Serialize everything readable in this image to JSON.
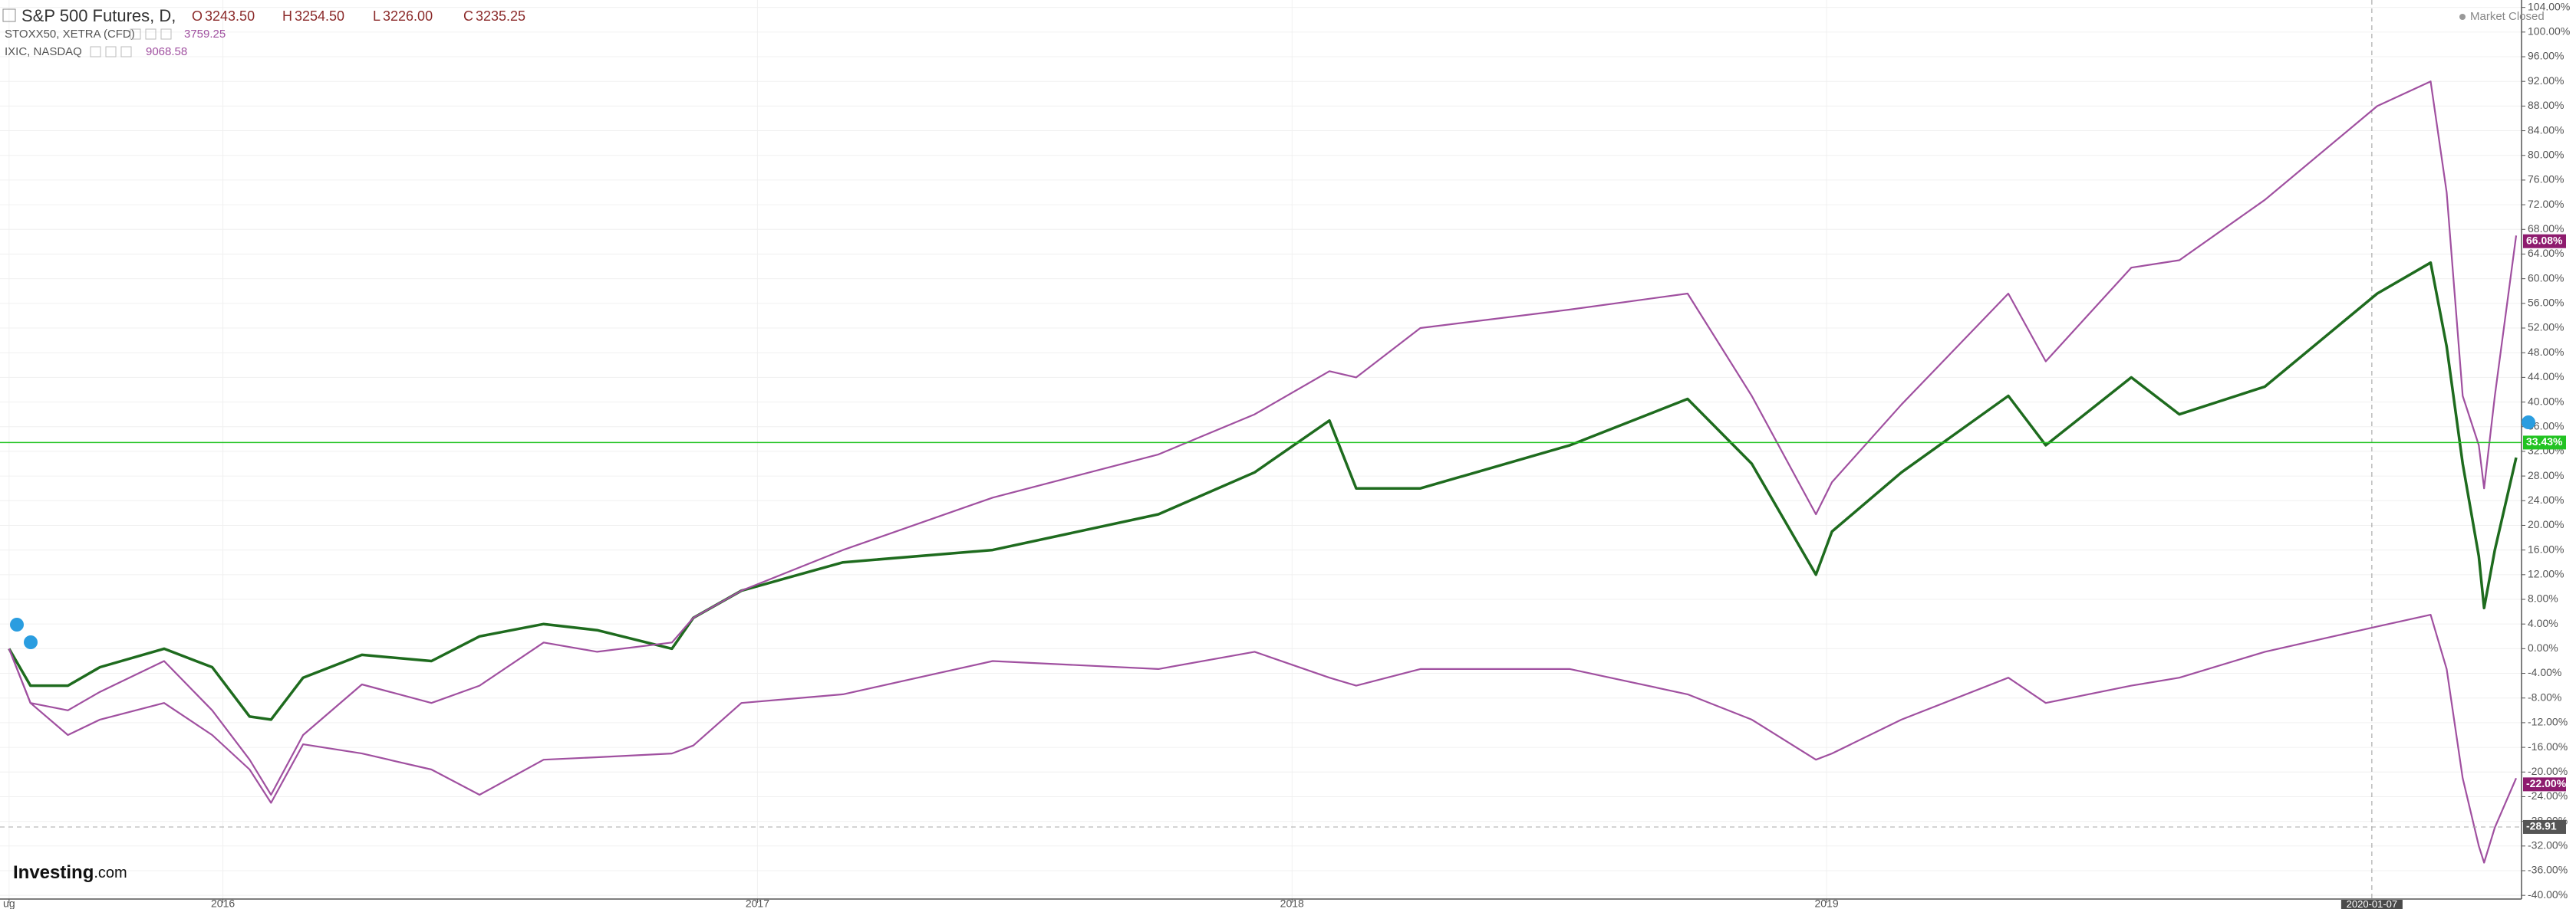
{
  "header": {
    "symbol": "S&P 500 Futures, D,",
    "ohlc": [
      {
        "label": "O",
        "value": "3243.50"
      },
      {
        "label": "H",
        "value": "3254.50"
      },
      {
        "label": "L",
        "value": "3226.00"
      },
      {
        "label": "C",
        "value": "3235.25"
      }
    ],
    "compare": [
      {
        "name": "STOXX50, XETRA (CFD)",
        "value": "3759.25"
      },
      {
        "name": "IXIC, NASDAQ",
        "value": "9068.58"
      }
    ],
    "status": "Market Closed",
    "logo": {
      "brand": "Investing",
      "suffix": ".com"
    }
  },
  "chart_data": {
    "type": "line",
    "x": [
      2015.6,
      2015.64,
      2015.71,
      2015.77,
      2015.89,
      2015.98,
      2016.05,
      2016.09,
      2016.15,
      2016.26,
      2016.39,
      2016.48,
      2016.6,
      2016.7,
      2016.84,
      2016.88,
      2016.97,
      2017.16,
      2017.44,
      2017.75,
      2017.93,
      2018.07,
      2018.12,
      2018.24,
      2018.52,
      2018.74,
      2018.86,
      2018.98,
      2019.01,
      2019.14,
      2019.34,
      2019.41,
      2019.57,
      2019.66,
      2019.82,
      2020.03,
      2020.13,
      2020.16,
      2020.19,
      2020.22,
      2020.23,
      2020.25,
      2020.29
    ],
    "series": [
      {
        "name": "S&P 500 Futures",
        "color": "#1e6b1e",
        "values": [
          0,
          -6,
          -6,
          -3,
          0,
          -3,
          -11,
          -11.5,
          -4.7,
          -1,
          -2,
          2,
          4,
          3,
          0,
          5,
          9.4,
          14,
          16,
          21.8,
          28.6,
          37,
          26,
          26,
          33,
          40.5,
          30,
          12,
          19,
          28.6,
          41,
          33,
          44,
          38,
          42.5,
          57.6,
          62.6,
          49,
          30,
          15,
          6.6,
          16,
          31
        ]
      },
      {
        "name": "IXIC",
        "color": "#a050a0",
        "values": [
          0,
          -8.8,
          -10,
          -7,
          -2,
          -10,
          -18,
          -23.7,
          -14,
          -5.8,
          -8.8,
          -6,
          1,
          -0.5,
          1,
          5,
          9.4,
          16,
          24.5,
          31.5,
          38,
          45,
          44,
          52,
          55,
          57.6,
          41,
          21.8,
          27,
          39.6,
          57.6,
          46.6,
          61.8,
          63,
          72.8,
          88,
          92,
          74,
          41,
          33,
          26,
          41,
          67
        ]
      },
      {
        "name": "STOXX50",
        "color": "#a050a0",
        "values": [
          0,
          -8.8,
          -14,
          -11.5,
          -8.8,
          -14,
          -19.6,
          -25,
          -15.5,
          -17,
          -19.6,
          -23.7,
          -18,
          -17.6,
          -17,
          -15.7,
          -8.8,
          -7.4,
          -2,
          -3.3,
          -0.5,
          -4.7,
          -6,
          -3.3,
          -3.3,
          -7.4,
          -11.5,
          -18,
          -17,
          -11.5,
          -4.7,
          -8.8,
          -6,
          -4.7,
          -0.5,
          3.6,
          5.5,
          -3.3,
          -21,
          -32,
          -34.7,
          -29,
          -21
        ]
      }
    ],
    "xlim": [
      2015.583,
      2020.3
    ],
    "xticks": [
      {
        "value": 2015.6,
        "label": "ug"
      },
      2016,
      2017,
      2018,
      2019
    ],
    "crosshair_x": {
      "value": 2020.02,
      "label": "2020-01-07"
    },
    "ylim": [
      -40.6,
      105.2
    ],
    "yticks": [
      {
        "value": 104,
        "label": "104.00%"
      },
      {
        "value": 100,
        "label": "100.00%"
      },
      {
        "value": 96,
        "label": "96.00%"
      },
      {
        "value": 92,
        "label": "92.00%"
      },
      {
        "value": 88,
        "label": "88.00%"
      },
      {
        "value": 84,
        "label": "84.00%"
      },
      {
        "value": 80,
        "label": "80.00%"
      },
      {
        "value": 76,
        "label": "76.00%"
      },
      {
        "value": 72,
        "label": "72.00%"
      },
      {
        "value": 68,
        "label": "68.00%"
      },
      {
        "value": 64,
        "label": "64.00%"
      },
      {
        "value": 60,
        "label": "60.00%"
      },
      {
        "value": 56,
        "label": "56.00%"
      },
      {
        "value": 52,
        "label": "52.00%"
      },
      {
        "value": 48,
        "label": "48.00%"
      },
      {
        "value": 44,
        "label": "44.00%"
      },
      {
        "value": 40,
        "label": "40.00%"
      },
      {
        "value": 36,
        "label": "36.00%"
      },
      {
        "value": 32,
        "label": "32.00%"
      },
      {
        "value": 28,
        "label": "28.00%"
      },
      {
        "value": 24,
        "label": "24.00%"
      },
      {
        "value": 20,
        "label": "20.00%"
      },
      {
        "value": 16,
        "label": "16.00%"
      },
      {
        "value": 12,
        "label": "12.00%"
      },
      {
        "value": 8,
        "label": "8.00%"
      },
      {
        "value": 4,
        "label": "4.00%"
      },
      {
        "value": 0,
        "label": "0.00%"
      },
      {
        "value": -4,
        "label": "-4.00%"
      },
      {
        "value": -8,
        "label": "-8.00%"
      },
      {
        "value": -12,
        "label": "-12.00%"
      },
      {
        "value": -16,
        "label": "-16.00%"
      },
      {
        "value": -20,
        "label": "-20.00%"
      },
      {
        "value": -24,
        "label": "-24.00%"
      },
      {
        "value": -28,
        "label": "-28.00%"
      },
      {
        "value": -32,
        "label": "-32.00%"
      },
      {
        "value": -36,
        "label": "-36.00%"
      },
      {
        "value": -40,
        "label": "-40.00%"
      }
    ],
    "price_labels": [
      {
        "value": 66.08,
        "label": "66.08%",
        "color": "#8e1b6e"
      },
      {
        "value": 33.43,
        "label": "33.43%",
        "color": "#22c322"
      },
      {
        "value": -22,
        "label": "-22.00%",
        "color": "#8e1b6e"
      },
      {
        "value": -28.91,
        "label": "-28.91",
        "color": "#555555"
      }
    ],
    "grid": true
  }
}
